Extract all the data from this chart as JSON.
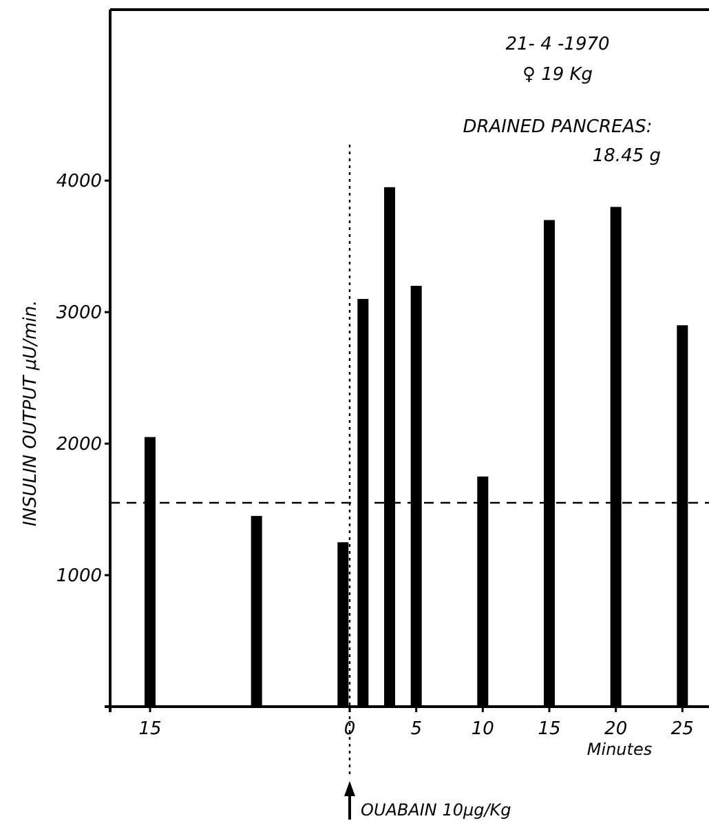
{
  "chart_data": {
    "type": "bar",
    "xlabel": "Minutes",
    "ylabel": "INSULIN OUTPUT μU/min.",
    "x": [
      -15,
      -7,
      -0.5,
      1,
      3,
      5,
      10,
      15,
      20,
      25
    ],
    "values": [
      2050,
      1450,
      1250,
      3100,
      3950,
      3200,
      1750,
      3700,
      3800,
      2900
    ],
    "color": "#000000",
    "xlim": [
      -18,
      27
    ],
    "xticks": [
      {
        "value": -15,
        "label": "15"
      },
      0,
      5,
      10,
      15,
      20,
      25
    ],
    "ylim": [
      0,
      5300
    ],
    "yticks": [
      1000,
      2000,
      3000,
      4000
    ],
    "ref_lines": [
      {
        "axis": "y",
        "value": 1550,
        "line_style": "dashed"
      },
      {
        "axis": "x",
        "value": 0,
        "label": "OUABAIN 10μg/Kg",
        "line_style": "dotted"
      }
    ],
    "annotations": [
      "21- 4 -1970",
      "♀ 19 Kg",
      "DRAINED PANCREAS:",
      "18.45 g"
    ],
    "grid": false
  }
}
